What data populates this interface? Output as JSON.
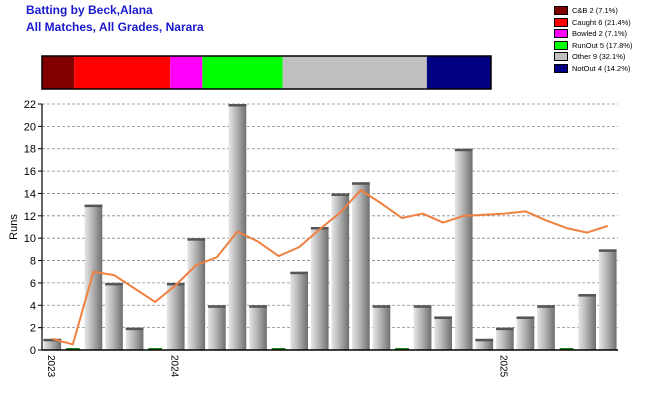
{
  "header": {
    "title": "Batting by Beck,Alana",
    "subtitle": "All Matches, All Grades, Narara"
  },
  "legend": [
    {
      "label": "C&B 2 (7.1%)",
      "color": "#800000"
    },
    {
      "label": "Caught 6 (21.4%)",
      "color": "#ff0000"
    },
    {
      "label": "Bowled 2 (7.1%)",
      "color": "#ff00ff"
    },
    {
      "label": "RunOut 5 (17.8%)",
      "color": "#00ff00"
    },
    {
      "label": "Other 9 (32.1%)",
      "color": "#c0c0c0"
    },
    {
      "label": "NotOut 4 (14.2%)",
      "color": "#000080"
    }
  ],
  "dismissal_strip": {
    "type": "stacked-bar",
    "segments": [
      {
        "name": "C&B",
        "count": 2,
        "color": "#800000"
      },
      {
        "name": "Caught",
        "count": 6,
        "color": "#ff0000"
      },
      {
        "name": "Bowled",
        "count": 2,
        "color": "#ff00ff"
      },
      {
        "name": "RunOut",
        "count": 5,
        "color": "#00ff00"
      },
      {
        "name": "Other",
        "count": 9,
        "color": "#c0c0c0"
      },
      {
        "name": "NotOut",
        "count": 4,
        "color": "#000080"
      }
    ]
  },
  "chart_data": {
    "type": "bar",
    "ylabel": "Runs",
    "ylim": [
      0,
      22
    ],
    "yticks": [
      0,
      2,
      4,
      6,
      8,
      10,
      12,
      14,
      16,
      18,
      20,
      22
    ],
    "grid": true,
    "x_tick_labels": [
      {
        "label": "2023",
        "at_index": 0
      },
      {
        "label": "2024",
        "at_index": 6
      },
      {
        "label": "2025",
        "at_index": 22
      }
    ],
    "series": [
      {
        "values": [
          1,
          0,
          13,
          6,
          2,
          0,
          6,
          10,
          4,
          22,
          4,
          0,
          7,
          11,
          14,
          15,
          4,
          0,
          4,
          3,
          18,
          1,
          2,
          3,
          4,
          0,
          5,
          9
        ]
      },
      {
        "type": "line",
        "color": "#f08040",
        "values": [
          1,
          0.5,
          7,
          6.7,
          5.5,
          4.3,
          5.8,
          7.6,
          8.3,
          10.6,
          9.7,
          8.4,
          9.2,
          10.8,
          12.3,
          14.3,
          13.1,
          11.8,
          12.2,
          11.4,
          12.0,
          12.1,
          12.2,
          12.4,
          11.6,
          10.9,
          10.5,
          11.1
        ]
      }
    ]
  }
}
